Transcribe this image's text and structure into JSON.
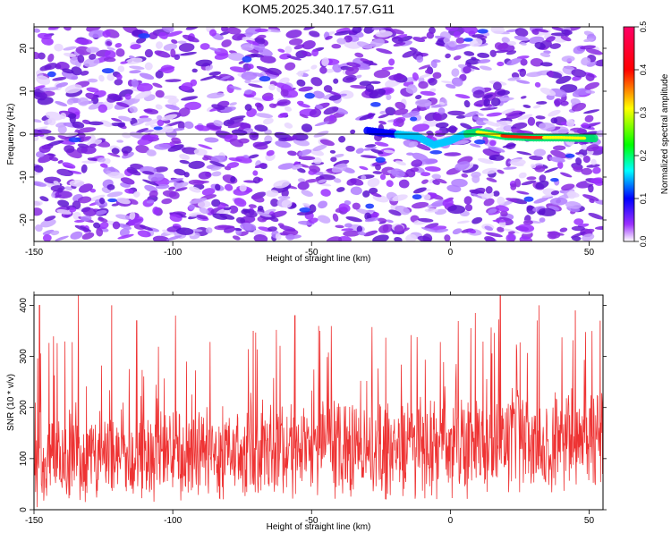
{
  "chart_data": [
    {
      "type": "heatmap",
      "title": "KOM5.2025.340.17.57.G11",
      "xlabel": "Height of straight line (km)",
      "ylabel": "Frequency (Hz)",
      "xlim": [
        -150,
        55
      ],
      "ylim": [
        -25,
        25
      ],
      "xticks": [
        -150,
        -100,
        -50,
        0,
        50
      ],
      "yticks": [
        -20,
        -10,
        0,
        10,
        20
      ],
      "colorbar": {
        "label": "Normalized spectral amplitude",
        "range": [
          0.0,
          0.5
        ],
        "ticks": [
          0.0,
          0.1,
          0.2,
          0.3,
          0.4,
          0.5
        ],
        "colors": [
          "#ffffff",
          "#9b30ff",
          "#0000ff",
          "#00ffff",
          "#00ff00",
          "#ffff00",
          "#ff0000",
          "#ff0066"
        ]
      },
      "trace": {
        "description_points_x": [
          -30,
          -20,
          -12,
          -6,
          0,
          5,
          10,
          20,
          30,
          40,
          52
        ],
        "description_points_y": [
          0.8,
          0,
          -0.5,
          -2.5,
          -1.5,
          0,
          0.5,
          -0.5,
          -0.8,
          -0.8,
          -1.0
        ]
      }
    },
    {
      "type": "line",
      "xlabel": "Height of straight line (km)",
      "ylabel": "SNR (10 * v/v)",
      "xlim": [
        -150,
        55
      ],
      "ylim": [
        0,
        420
      ],
      "xticks": [
        -150,
        -100,
        -50,
        0,
        50
      ],
      "yticks": [
        0,
        100,
        200,
        300,
        400
      ],
      "series": [
        {
          "name": "SNR",
          "color": "#ee3333",
          "baseline_start": 100,
          "baseline_end": 140,
          "peaks_x": [
            -148,
            -134,
            -122,
            -113,
            -99,
            -71,
            -56,
            -47,
            9,
            18,
            32,
            45,
            54
          ],
          "peaks_y": [
            400,
            420,
            400,
            370,
            380,
            350,
            380,
            350,
            385,
            420,
            400,
            390,
            370
          ]
        }
      ]
    }
  ]
}
